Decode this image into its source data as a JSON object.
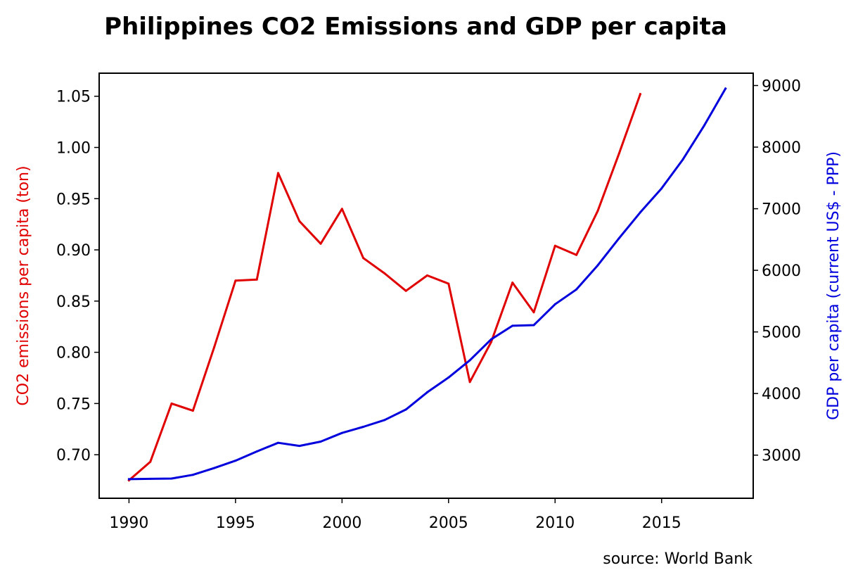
{
  "chart_data": {
    "type": "line",
    "title": "Philippines CO2 Emissions and GDP per capita",
    "source": "source: World Bank",
    "xlabel": "",
    "xlim": [
      1988.6,
      2019.3
    ],
    "xticks": [
      1990,
      1995,
      2000,
      2005,
      2010,
      2015
    ],
    "y_left": {
      "label": "CO2 emissions per capita (ton)",
      "color": "#e00000",
      "lim": [
        0.6575,
        1.0725
      ],
      "ticks": [
        0.7,
        0.75,
        0.8,
        0.85,
        0.9,
        0.95,
        1.0,
        1.05
      ],
      "tick_labels": [
        "0.70",
        "0.75",
        "0.80",
        "0.85",
        "0.90",
        "0.95",
        "1.00",
        "1.05"
      ]
    },
    "y_right": {
      "label": "GDP per capita (current US$ - PPP)",
      "color": "#0000dd",
      "lim": [
        2300,
        9200
      ],
      "ticks": [
        3000,
        4000,
        5000,
        6000,
        7000,
        8000,
        9000
      ],
      "tick_labels": [
        "3000",
        "4000",
        "5000",
        "6000",
        "7000",
        "8000",
        "9000"
      ]
    },
    "series": [
      {
        "axis": "left",
        "color": "#e00000",
        "x": [
          1990,
          1991,
          1992,
          1993,
          1994,
          1995,
          1996,
          1997,
          1998,
          1999,
          2000,
          2001,
          2002,
          2003,
          2004,
          2005,
          2006,
          2007,
          2008,
          2009,
          2010,
          2011,
          2012,
          2013,
          2014
        ],
        "values": [
          0.675,
          0.693,
          0.75,
          0.743,
          0.805,
          0.87,
          0.871,
          0.975,
          0.928,
          0.906,
          0.94,
          0.892,
          0.877,
          0.86,
          0.875,
          0.867,
          0.771,
          0.81,
          0.868,
          0.839,
          0.904,
          0.895,
          0.938,
          0.994,
          1.052
        ]
      },
      {
        "axis": "right",
        "color": "#0000dd",
        "x": [
          1990,
          1991,
          1992,
          1993,
          1994,
          1995,
          1996,
          1997,
          1998,
          1999,
          2000,
          2001,
          2002,
          2003,
          2004,
          2005,
          2006,
          2007,
          2008,
          2009,
          2010,
          2011,
          2012,
          2013,
          2014,
          2015,
          2016,
          2017,
          2018
        ],
        "values": [
          2610,
          2615,
          2620,
          2680,
          2790,
          2910,
          3060,
          3200,
          3150,
          3220,
          3360,
          3460,
          3570,
          3740,
          4020,
          4260,
          4540,
          4880,
          5100,
          5110,
          5450,
          5690,
          6080,
          6520,
          6940,
          7330,
          7800,
          8350,
          8950
        ]
      }
    ],
    "grid": false,
    "legend": "none"
  }
}
